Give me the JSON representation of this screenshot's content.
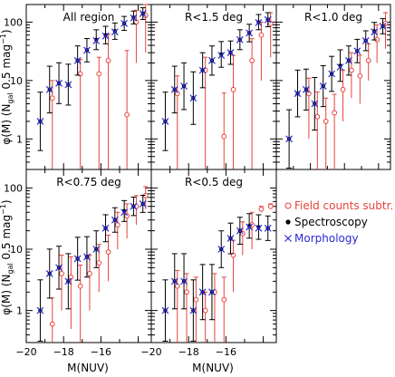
{
  "chart_data": {
    "type": "scatter",
    "ylabel": "φ(M) (N_gal 0.5 mag⁻¹)",
    "ylabel_parts": {
      "phi": "φ(M)",
      "n": "(N",
      "sub": "gal",
      "rest": "0.5 mag",
      "exp": "−1",
      "close": ")"
    },
    "xlabel": "M(NUV)",
    "x_ticks": [
      -20,
      -18,
      -16
    ],
    "x_tick_labels": [
      "−20",
      "−18",
      "−16"
    ],
    "y_ticks": [
      1,
      10,
      100
    ],
    "y_tick_labels": [
      "1",
      "10",
      "100"
    ],
    "xlim": [
      -20,
      -13.3
    ],
    "ylim": [
      0.3,
      200
    ],
    "y_scale": "log",
    "legend": {
      "placement": "lower-right",
      "entries": [
        {
          "label": "Field counts subtr.",
          "marker": "open-circle",
          "color": "#e8433a"
        },
        {
          "label": "Spectroscopy",
          "marker": "filled-dot",
          "color": "#000000"
        },
        {
          "label": "Morphology",
          "marker": "cross",
          "color": "#2a2ad6"
        }
      ]
    },
    "panels": [
      {
        "title": "All region",
        "spectroscopy": {
          "x": [
            -19.25,
            -18.75,
            -18.25,
            -17.75,
            -17.25,
            -16.75,
            -16.25,
            -15.75,
            -15.25,
            -14.75,
            -14.25,
            -13.75
          ],
          "y": [
            2.0,
            7.0,
            9.0,
            8.5,
            22,
            33,
            50,
            60,
            70,
            95,
            120,
            140
          ],
          "err": [
            0.5,
            0.4,
            0.35,
            0.35,
            0.25,
            0.2,
            0.17,
            0.15,
            0.14,
            0.12,
            0.11,
            0.1
          ]
        },
        "morphology": {
          "x": [
            -19.25,
            -18.75,
            -18.25,
            -17.75,
            -17.25,
            -16.75,
            -16.25,
            -15.75,
            -15.25,
            -14.75,
            -14.25,
            -13.75
          ],
          "y": [
            2.0,
            7.0,
            9.0,
            8.5,
            22,
            33,
            48,
            58,
            68,
            95,
            118,
            140
          ]
        },
        "field_subtracted": {
          "x": [
            -18.75,
            -17.25,
            -16.25,
            -15.75,
            -14.75,
            -14.25,
            -13.75
          ],
          "y": [
            5.0,
            13,
            13,
            22,
            2.6,
            100,
            130
          ],
          "err_lo": [
            5.0,
            13,
            13,
            22,
            2.6,
            80,
            100
          ],
          "err_hi": [
            5,
            10,
            12,
            40,
            30,
            60,
            70
          ]
        }
      },
      {
        "title": "R<1.5 deg",
        "spectroscopy": {
          "x": [
            -19.25,
            -18.75,
            -18.25,
            -17.75,
            -17.25,
            -16.75,
            -16.25,
            -15.75,
            -15.25,
            -14.75,
            -14.25,
            -13.75
          ],
          "y": [
            2.0,
            7.0,
            8.0,
            5.0,
            15,
            22,
            28,
            30,
            50,
            65,
            100,
            110
          ],
          "err": [
            0.5,
            0.4,
            0.4,
            0.45,
            0.3,
            0.25,
            0.22,
            0.2,
            0.17,
            0.15,
            0.13,
            0.12
          ]
        },
        "morphology": {
          "x": [
            -19.25,
            -18.75,
            -18.25,
            -17.75,
            -17.25,
            -16.75,
            -16.25,
            -15.75,
            -15.25,
            -14.75,
            -14.25,
            -13.75
          ],
          "y": [
            2.0,
            7.0,
            8.0,
            5.0,
            15,
            22,
            27,
            30,
            50,
            65,
            98,
            110
          ]
        },
        "field_subtracted": {
          "x": [
            -18.75,
            -17.25,
            -16.25,
            -15.75,
            -14.75,
            -14.25,
            -13.75
          ],
          "y": [
            6.0,
            15,
            1.1,
            7.0,
            22,
            60,
            95
          ],
          "err_lo": [
            6,
            15,
            1.1,
            7,
            22,
            50,
            70
          ],
          "err_hi": [
            6,
            10,
            5,
            20,
            30,
            40,
            50
          ]
        }
      },
      {
        "title": "R<1.0 deg",
        "spectroscopy": {
          "x": [
            -19.25,
            -18.75,
            -18.25,
            -17.75,
            -17.25,
            -16.75,
            -16.25,
            -15.75,
            -15.25,
            -14.75,
            -14.25,
            -13.75
          ],
          "y": [
            1.0,
            6.0,
            7.0,
            4.0,
            8.0,
            13,
            18,
            22,
            32,
            48,
            70,
            85
          ],
          "err": [
            0.5,
            0.4,
            0.35,
            0.45,
            0.35,
            0.3,
            0.27,
            0.25,
            0.2,
            0.17,
            0.15,
            0.13
          ]
        },
        "morphology": {
          "x": [
            -19.25,
            -18.75,
            -18.25,
            -17.75,
            -17.25,
            -16.75,
            -16.25,
            -15.75,
            -15.25,
            -14.75,
            -14.25,
            -13.75
          ],
          "y": [
            1.0,
            6.0,
            7.0,
            4.0,
            8.0,
            13,
            17,
            22,
            32,
            48,
            68,
            85
          ]
        },
        "field_subtracted": {
          "x": [
            -18.25,
            -17.75,
            -17.25,
            -16.75,
            -16.25,
            -15.75,
            -15.25,
            -14.75,
            -14.25,
            -13.75
          ],
          "y": [
            6.0,
            2.4,
            2.0,
            2.8,
            7.0,
            15,
            12,
            22,
            50,
            95
          ],
          "err_lo": [
            5,
            2.4,
            2,
            2.5,
            5,
            10,
            8,
            12,
            30,
            60
          ],
          "err_hi": [
            5,
            4,
            3,
            3,
            8,
            15,
            15,
            20,
            40,
            50
          ]
        }
      },
      {
        "title": "R<0.75 deg",
        "spectroscopy": {
          "x": [
            -19.25,
            -18.75,
            -18.25,
            -17.75,
            -17.25,
            -16.75,
            -16.25,
            -15.75,
            -15.25,
            -14.75,
            -14.25,
            -13.75
          ],
          "y": [
            1.0,
            4.0,
            5.0,
            3.0,
            7.0,
            7.5,
            10,
            22,
            30,
            42,
            50,
            55
          ],
          "err": [
            0.5,
            0.4,
            0.35,
            0.45,
            0.35,
            0.33,
            0.3,
            0.22,
            0.2,
            0.17,
            0.15,
            0.14
          ]
        },
        "morphology": {
          "x": [
            -19.25,
            -18.75,
            -18.25,
            -17.75,
            -17.25,
            -16.75,
            -16.25,
            -15.75,
            -15.25,
            -14.75,
            -14.25,
            -13.75
          ],
          "y": [
            1.0,
            4.0,
            5.0,
            3.0,
            7.0,
            7.5,
            10,
            22,
            30,
            40,
            50,
            55
          ]
        },
        "field_subtracted": {
          "x": [
            -18.75,
            -18.25,
            -17.75,
            -17.25,
            -16.75,
            -16.25,
            -15.75,
            -15.25,
            -14.75,
            -14.25,
            -13.75
          ],
          "y": [
            0.6,
            4.0,
            3.5,
            2.5,
            4.0,
            6.0,
            9.0,
            25,
            35,
            50,
            75
          ],
          "err_lo": [
            0.6,
            3,
            3,
            2.5,
            3,
            4,
            6,
            15,
            20,
            25,
            30
          ],
          "err_hi": [
            1,
            4,
            4,
            3,
            4,
            6,
            8,
            15,
            20,
            25,
            30
          ]
        }
      },
      {
        "title": "R<0.5 deg",
        "spectroscopy": {
          "x": [
            -19.25,
            -18.75,
            -18.25,
            -17.75,
            -17.25,
            -16.75,
            -16.25,
            -15.75,
            -15.25,
            -14.75,
            -14.25,
            -13.75
          ],
          "y": [
            1.0,
            3.0,
            3.0,
            1.0,
            2.0,
            2.0,
            10,
            15,
            20,
            24,
            23,
            22
          ],
          "err": [
            0.5,
            0.45,
            0.45,
            0.5,
            0.45,
            0.45,
            0.3,
            0.25,
            0.22,
            0.2,
            0.2,
            0.2
          ]
        },
        "morphology": {
          "x": [
            -19.25,
            -18.75,
            -18.25,
            -17.75,
            -17.25,
            -16.75,
            -16.25,
            -15.75,
            -15.25,
            -14.75,
            -14.25,
            -13.75
          ],
          "y": [
            1.0,
            3.0,
            3.0,
            1.0,
            2.0,
            2.0,
            10,
            15,
            20,
            23,
            22,
            22
          ]
        },
        "field_subtracted": {
          "x": [
            -18.75,
            -18.25,
            -17.75,
            -17.25,
            -16.75,
            -16.25,
            -15.75,
            -15.25,
            -14.75,
            -14.25,
            -13.75
          ],
          "y": [
            2.5,
            2.0,
            1.5,
            1.0,
            2.0,
            1.5,
            8.0,
            18,
            25,
            45,
            50
          ],
          "err_lo": [
            2.5,
            2,
            1.5,
            1,
            2,
            1.5,
            6,
            10,
            15,
            5,
            5
          ],
          "err_hi": [
            2,
            2,
            2,
            1,
            2,
            2,
            6,
            10,
            15,
            5,
            5
          ]
        }
      }
    ]
  }
}
